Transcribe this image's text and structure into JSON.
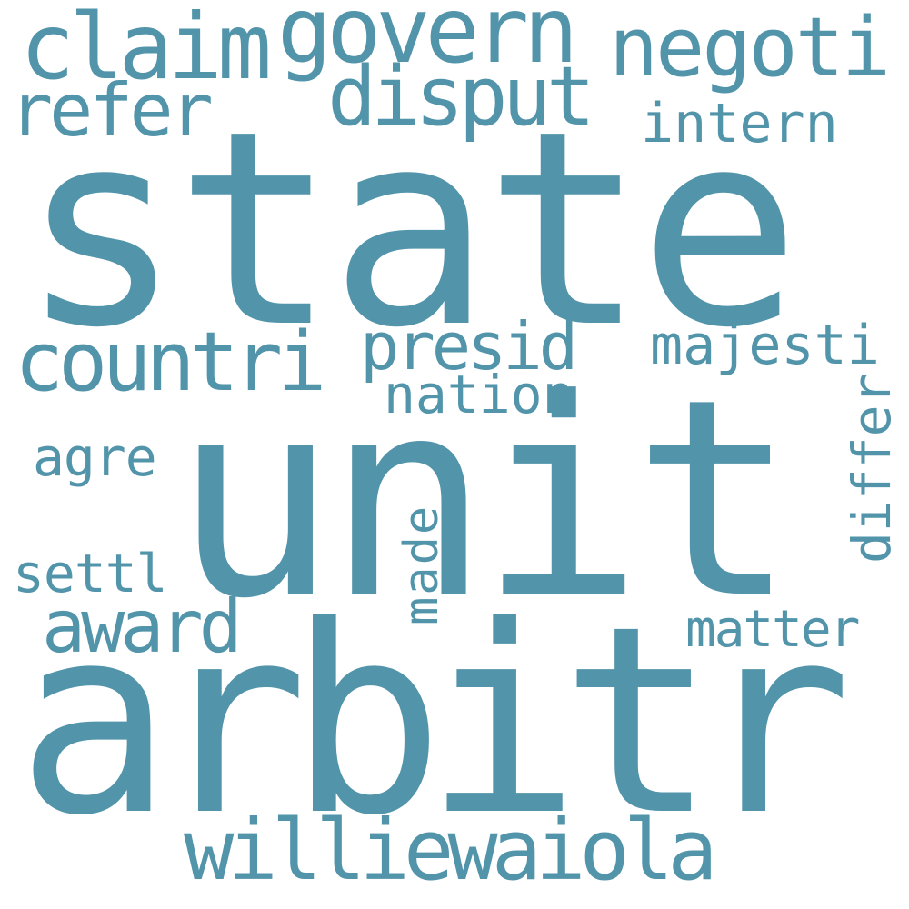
{
  "cloud": {
    "color": "#5294aa",
    "background": "#ffffff",
    "words": [
      {
        "text": "state",
        "orientation": "horizontal"
      },
      {
        "text": "unit",
        "orientation": "horizontal"
      },
      {
        "text": "arbitr",
        "orientation": "horizontal"
      },
      {
        "text": "govern",
        "orientation": "horizontal"
      },
      {
        "text": "claim",
        "orientation": "horizontal"
      },
      {
        "text": "negoti",
        "orientation": "horizontal"
      },
      {
        "text": "disput",
        "orientation": "horizontal"
      },
      {
        "text": "refer",
        "orientation": "horizontal"
      },
      {
        "text": "intern",
        "orientation": "horizontal"
      },
      {
        "text": "countri",
        "orientation": "horizontal"
      },
      {
        "text": "presid",
        "orientation": "horizontal"
      },
      {
        "text": "majesti",
        "orientation": "horizontal"
      },
      {
        "text": "nation",
        "orientation": "horizontal"
      },
      {
        "text": "agre",
        "orientation": "horizontal"
      },
      {
        "text": "differ",
        "orientation": "vertical"
      },
      {
        "text": "made",
        "orientation": "vertical"
      },
      {
        "text": "settl",
        "orientation": "horizontal"
      },
      {
        "text": "award",
        "orientation": "horizontal"
      },
      {
        "text": "matter",
        "orientation": "horizontal"
      },
      {
        "text": "williewaiola",
        "orientation": "horizontal"
      }
    ]
  }
}
